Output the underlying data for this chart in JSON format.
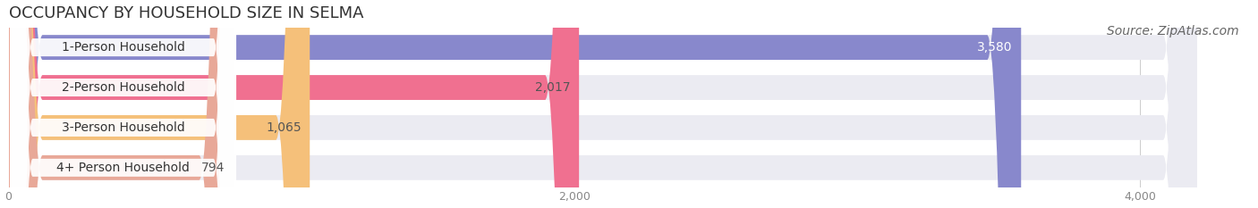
{
  "title": "OCCUPANCY BY HOUSEHOLD SIZE IN SELMA",
  "source": "Source: ZipAtlas.com",
  "categories": [
    "1-Person Household",
    "2-Person Household",
    "3-Person Household",
    "4+ Person Household"
  ],
  "values": [
    3580,
    2017,
    1065,
    794
  ],
  "bar_colors": [
    "#8888cc",
    "#f07090",
    "#f5c07a",
    "#e8a898"
  ],
  "bar_bg_color": "#ebebf2",
  "value_text_colors": [
    "white",
    "#555555",
    "#555555",
    "#555555"
  ],
  "xlim": [
    0,
    4400
  ],
  "xticks": [
    0,
    2000,
    4000
  ],
  "title_fontsize": 13,
  "source_fontsize": 10,
  "label_fontsize": 10,
  "value_fontsize": 10,
  "bar_height": 0.62,
  "figsize": [
    14.06,
    2.33
  ],
  "dpi": 100
}
